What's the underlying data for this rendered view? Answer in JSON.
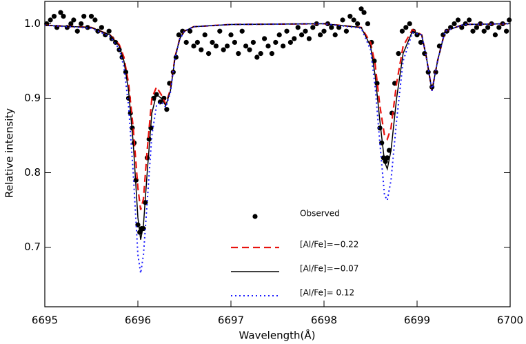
{
  "chart_data": {
    "type": "line",
    "xlabel": "Wavelength(Å)",
    "ylabel": "Relative intensity",
    "xlim": [
      6695,
      6700
    ],
    "ylim": [
      0.62,
      1.03
    ],
    "xticks": [
      6695,
      6696,
      6697,
      6698,
      6699,
      6700
    ],
    "yticks": [
      0.7,
      0.8,
      0.9,
      {
        "value": 1,
        "label": "1.0"
      }
    ],
    "legend": "lower center",
    "series": [
      {
        "name": "Observed",
        "style": "markers",
        "color": "#000000",
        "x": [
          6695.02,
          6695.06,
          6695.1,
          6695.13,
          6695.17,
          6695.2,
          6695.24,
          6695.28,
          6695.31,
          6695.35,
          6695.39,
          6695.42,
          6695.46,
          6695.5,
          6695.54,
          6695.57,
          6695.61,
          6695.65,
          6695.69,
          6695.72,
          6695.76,
          6695.8,
          6695.83,
          6695.87,
          6695.9,
          6695.92,
          6695.94,
          6695.96,
          6695.98,
          6696.0,
          6696.02,
          6696.04,
          6696.06,
          6696.08,
          6696.1,
          6696.12,
          6696.14,
          6696.17,
          6696.2,
          6696.24,
          6696.28,
          6696.31,
          6696.34,
          6696.38,
          6696.41,
          6696.44,
          6696.48,
          6696.52,
          6696.56,
          6696.6,
          6696.64,
          6696.68,
          6696.72,
          6696.76,
          6696.8,
          6696.84,
          6696.88,
          6696.92,
          6696.96,
          6697.0,
          6697.04,
          6697.08,
          6697.12,
          6697.16,
          6697.2,
          6697.24,
          6697.28,
          6697.32,
          6697.36,
          6697.4,
          6697.44,
          6697.48,
          6697.52,
          6697.56,
          6697.6,
          6697.64,
          6697.68,
          6697.72,
          6697.76,
          6697.8,
          6697.84,
          6697.88,
          6697.92,
          6697.96,
          6698.0,
          6698.04,
          6698.08,
          6698.12,
          6698.16,
          6698.2,
          6698.24,
          6698.28,
          6698.32,
          6698.36,
          6698.4,
          6698.43,
          6698.47,
          6698.51,
          6698.54,
          6698.57,
          6698.6,
          6698.62,
          6698.64,
          6698.66,
          6698.68,
          6698.7,
          6698.73,
          6698.76,
          6698.8,
          6698.84,
          6698.88,
          6698.92,
          6698.96,
          6699.0,
          6699.04,
          6699.08,
          6699.12,
          6699.16,
          6699.2,
          6699.24,
          6699.28,
          6699.32,
          6699.36,
          6699.4,
          6699.44,
          6699.48,
          6699.52,
          6699.56,
          6699.6,
          6699.64,
          6699.68,
          6699.72,
          6699.76,
          6699.8,
          6699.84,
          6699.88,
          6699.92,
          6699.96,
          6699.99
        ],
        "values": [
          1.0,
          1.005,
          1.01,
          0.995,
          1.015,
          1.01,
          0.995,
          1.0,
          1.005,
          0.99,
          1.0,
          1.01,
          0.995,
          1.01,
          1.005,
          0.99,
          0.995,
          0.985,
          0.99,
          0.98,
          0.975,
          0.965,
          0.955,
          0.935,
          0.9,
          0.88,
          0.86,
          0.84,
          0.79,
          0.73,
          0.72,
          0.725,
          0.725,
          0.76,
          0.82,
          0.845,
          0.86,
          0.9,
          0.905,
          0.895,
          0.9,
          0.885,
          0.92,
          0.935,
          0.955,
          0.985,
          0.99,
          0.975,
          0.99,
          0.97,
          0.975,
          0.965,
          0.985,
          0.96,
          0.975,
          0.97,
          0.99,
          0.965,
          0.97,
          0.985,
          0.975,
          0.96,
          0.99,
          0.97,
          0.965,
          0.975,
          0.955,
          0.96,
          0.98,
          0.97,
          0.96,
          0.975,
          0.985,
          0.97,
          0.99,
          0.975,
          0.98,
          0.995,
          0.985,
          0.99,
          0.98,
          0.995,
          1.0,
          0.985,
          0.99,
          1.0,
          0.995,
          0.985,
          0.995,
          1.005,
          0.99,
          1.01,
          1.005,
          1.0,
          1.02,
          1.015,
          1.0,
          0.975,
          0.95,
          0.92,
          0.86,
          0.84,
          0.82,
          0.815,
          0.82,
          0.83,
          0.88,
          0.92,
          0.96,
          0.99,
          0.995,
          1.0,
          0.99,
          0.985,
          0.975,
          0.96,
          0.935,
          0.915,
          0.935,
          0.97,
          0.985,
          0.99,
          0.995,
          1.0,
          1.005,
          0.995,
          1.0,
          1.005,
          0.99,
          0.995,
          1.0,
          0.99,
          0.995,
          1.0,
          0.985,
          0.995,
          1.0,
          0.99,
          1.005
        ]
      },
      {
        "name": "[Al/Fe]=−0.22",
        "style": "dashed",
        "color": "#e8120e",
        "x": [
          6695,
          6695.5,
          6695.7,
          6695.8,
          6695.85,
          6695.9,
          6695.95,
          6696.0,
          6696.03,
          6696.06,
          6696.1,
          6696.15,
          6696.2,
          6696.25,
          6696.3,
          6696.35,
          6696.4,
          6696.45,
          6696.5,
          6696.6,
          6697,
          6698,
          6698.4,
          6698.5,
          6698.55,
          6698.6,
          6698.65,
          6698.68,
          6698.72,
          6698.78,
          6698.85,
          6698.95,
          6699.05,
          6699.1,
          6699.16,
          6699.22,
          6699.3,
          6699.5,
          6700
        ],
        "values": [
          0.998,
          0.995,
          0.985,
          0.972,
          0.955,
          0.92,
          0.86,
          0.78,
          0.75,
          0.765,
          0.83,
          0.9,
          0.915,
          0.905,
          0.892,
          0.912,
          0.956,
          0.98,
          0.99,
          0.996,
          0.999,
          1.0,
          0.995,
          0.975,
          0.945,
          0.89,
          0.85,
          0.845,
          0.86,
          0.92,
          0.97,
          0.992,
          0.985,
          0.955,
          0.91,
          0.95,
          0.99,
          0.999,
          1.0
        ]
      },
      {
        "name": "[Al/Fe]=−0.07",
        "style": "solid",
        "color": "#000000",
        "x": [
          6695,
          6695.5,
          6695.7,
          6695.8,
          6695.85,
          6695.9,
          6695.95,
          6696.0,
          6696.03,
          6696.06,
          6696.1,
          6696.15,
          6696.2,
          6696.25,
          6696.3,
          6696.35,
          6696.4,
          6696.45,
          6696.5,
          6696.6,
          6697,
          6698,
          6698.4,
          6698.5,
          6698.55,
          6698.6,
          6698.65,
          6698.68,
          6698.72,
          6698.78,
          6698.85,
          6698.95,
          6699.05,
          6699.1,
          6699.16,
          6699.22,
          6699.3,
          6699.5,
          6700
        ],
        "values": [
          0.998,
          0.995,
          0.985,
          0.97,
          0.95,
          0.91,
          0.84,
          0.74,
          0.71,
          0.73,
          0.8,
          0.88,
          0.905,
          0.9,
          0.89,
          0.91,
          0.955,
          0.98,
          0.99,
          0.996,
          0.999,
          1.0,
          0.995,
          0.97,
          0.93,
          0.87,
          0.815,
          0.805,
          0.83,
          0.9,
          0.96,
          0.99,
          0.985,
          0.955,
          0.91,
          0.95,
          0.99,
          0.999,
          1.0
        ]
      },
      {
        "name": "[Al/Fe]= 0.12",
        "style": "dotted",
        "color": "#1a1aff",
        "x": [
          6695,
          6695.5,
          6695.7,
          6695.8,
          6695.85,
          6695.9,
          6695.95,
          6696.0,
          6696.03,
          6696.06,
          6696.1,
          6696.15,
          6696.2,
          6696.25,
          6696.3,
          6696.35,
          6696.4,
          6696.45,
          6696.5,
          6696.6,
          6697,
          6698,
          6698.4,
          6698.5,
          6698.55,
          6698.6,
          6698.65,
          6698.68,
          6698.72,
          6698.78,
          6698.85,
          6698.95,
          6699.05,
          6699.1,
          6699.16,
          6699.22,
          6699.3,
          6699.5,
          6700
        ],
        "values": [
          0.998,
          0.994,
          0.983,
          0.966,
          0.942,
          0.89,
          0.8,
          0.69,
          0.665,
          0.69,
          0.76,
          0.85,
          0.89,
          0.895,
          0.888,
          0.908,
          0.954,
          0.979,
          0.99,
          0.996,
          0.999,
          1.0,
          0.994,
          0.965,
          0.915,
          0.84,
          0.77,
          0.763,
          0.79,
          0.87,
          0.95,
          0.988,
          0.985,
          0.955,
          0.91,
          0.95,
          0.99,
          0.999,
          1.0
        ]
      }
    ]
  }
}
